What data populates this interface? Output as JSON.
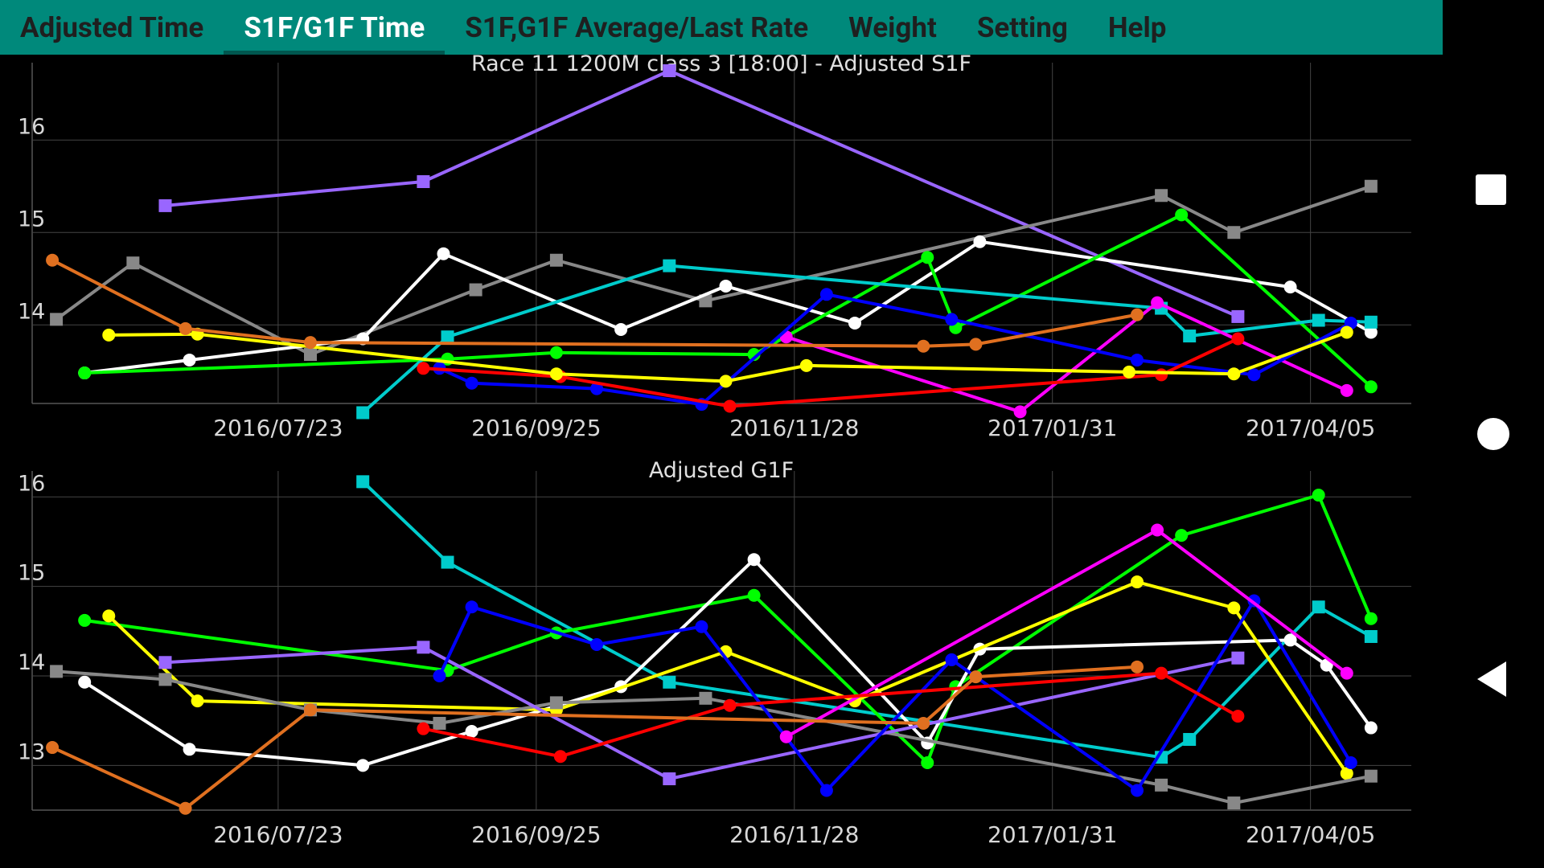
{
  "tabs": [
    {
      "label": "Adjusted Time",
      "active": false
    },
    {
      "label": "S1F/G1F Time",
      "active": true
    },
    {
      "label": "S1F,G1F Average/Last Rate",
      "active": false
    },
    {
      "label": "Weight",
      "active": false
    },
    {
      "label": "Setting",
      "active": false
    },
    {
      "label": "Help",
      "active": false
    }
  ],
  "navbar": {
    "recent": "square-icon",
    "home": "circle-icon",
    "back": "triangle-left-icon"
  },
  "chart_data": [
    {
      "type": "line",
      "title": "Race 11 1200M  class 3   [18:00] - Adjusted S1F",
      "x_ticks": [
        "2016/07/23",
        "2016/09/25",
        "2016/11/28",
        "2017/01/31",
        "2017/04/05"
      ],
      "xlim": [
        "2016/05/23",
        "2017/04/30"
      ],
      "ylim": [
        13.15,
        16.75
      ],
      "y_ticks": [
        14,
        15,
        16
      ],
      "grid": true,
      "series": [
        {
          "color": "#9966ff",
          "marker": "square",
          "points": [
            [
              "2016/06/25",
              15.29
            ],
            [
              "2016/08/28",
              15.55
            ],
            [
              "2016/10/28",
              16.75
            ],
            [
              "2017/03/18",
              14.09
            ]
          ]
        },
        {
          "color": "#888888",
          "marker": "square",
          "points": [
            [
              "2016/05/29",
              14.06
            ],
            [
              "2016/06/17",
              14.67
            ],
            [
              "2016/07/31",
              13.68
            ],
            [
              "2016/09/10",
              14.38
            ],
            [
              "2016/09/30",
              14.7
            ],
            [
              "2016/11/06",
              14.26
            ],
            [
              "2017/02/27",
              15.4
            ],
            [
              "2017/03/17",
              15.0
            ],
            [
              "2017/04/20",
              15.5
            ]
          ]
        },
        {
          "color": "#ffffff",
          "marker": "circle",
          "points": [
            [
              "2016/06/05",
              13.48
            ],
            [
              "2016/07/01",
              13.62
            ],
            [
              "2016/08/13",
              13.85
            ],
            [
              "2016/09/02",
              14.77
            ],
            [
              "2016/10/16",
              13.95
            ],
            [
              "2016/11/11",
              14.42
            ],
            [
              "2016/12/13",
              14.02
            ],
            [
              "2017/01/13",
              14.9
            ],
            [
              "2017/03/31",
              14.41
            ],
            [
              "2017/04/20",
              13.92
            ]
          ]
        },
        {
          "color": "#00ff00",
          "marker": "circle",
          "points": [
            [
              "2016/06/05",
              13.48
            ],
            [
              "2016/09/03",
              13.63
            ],
            [
              "2016/09/30",
              13.7
            ],
            [
              "2016/11/18",
              13.68
            ],
            [
              "2016/12/31",
              14.73
            ],
            [
              "2017/01/07",
              13.97
            ],
            [
              "2017/03/04",
              15.19
            ],
            [
              "2017/04/20",
              13.33
            ]
          ]
        },
        {
          "color": "#00cccc",
          "marker": "square",
          "points": [
            [
              "2016/08/13",
              13.05
            ],
            [
              "2016/09/03",
              13.87
            ],
            [
              "2016/10/28",
              14.64
            ],
            [
              "2017/02/27",
              14.18
            ],
            [
              "2017/03/06",
              13.88
            ],
            [
              "2017/04/07",
              14.05
            ],
            [
              "2017/04/20",
              14.03
            ]
          ]
        },
        {
          "color": "#ff00ff",
          "marker": "circle",
          "points": [
            [
              "2016/11/26",
              13.87
            ],
            [
              "2017/01/23",
              13.06
            ],
            [
              "2017/02/26",
              14.24
            ],
            [
              "2017/04/14",
              13.29
            ]
          ]
        },
        {
          "color": "#0000ff",
          "marker": "circle",
          "points": [
            [
              "2016/09/01",
              13.53
            ],
            [
              "2016/09/09",
              13.37
            ],
            [
              "2016/10/10",
              13.31
            ],
            [
              "2016/11/05",
              13.14
            ],
            [
              "2016/12/06",
              14.33
            ],
            [
              "2017/01/06",
              14.06
            ],
            [
              "2017/02/21",
              13.62
            ],
            [
              "2017/03/22",
              13.46
            ],
            [
              "2017/04/15",
              14.02
            ]
          ]
        },
        {
          "color": "#ff0000",
          "marker": "circle",
          "points": [
            [
              "2016/08/28",
              13.53
            ],
            [
              "2016/10/01",
              13.44
            ],
            [
              "2016/11/12",
              13.12
            ],
            [
              "2017/02/27",
              13.46
            ],
            [
              "2017/03/18",
              13.85
            ]
          ]
        },
        {
          "color": "#ffff00",
          "marker": "circle",
          "points": [
            [
              "2016/06/11",
              13.89
            ],
            [
              "2016/07/03",
              13.9
            ],
            [
              "2016/09/30",
              13.47
            ],
            [
              "2016/11/11",
              13.39
            ],
            [
              "2016/12/01",
              13.56
            ],
            [
              "2017/02/19",
              13.49
            ],
            [
              "2017/03/17",
              13.47
            ],
            [
              "2017/04/14",
              13.92
            ]
          ]
        },
        {
          "color": "#e07020",
          "marker": "circle",
          "points": [
            [
              "2016/05/28",
              14.7
            ],
            [
              "2016/06/30",
              13.96
            ],
            [
              "2016/07/31",
              13.81
            ],
            [
              "2016/12/30",
              13.77
            ],
            [
              "2017/01/12",
              13.79
            ],
            [
              "2017/02/21",
              14.11
            ]
          ]
        }
      ]
    },
    {
      "type": "line",
      "title": "Adjusted G1F",
      "x_ticks": [
        "2016/07/23",
        "2016/09/25",
        "2016/11/28",
        "2017/01/31",
        "2017/04/05"
      ],
      "xlim": [
        "2016/05/23",
        "2017/04/30"
      ],
      "ylim": [
        12.5,
        16.2
      ],
      "y_ticks": [
        13,
        14,
        15,
        16
      ],
      "grid": true,
      "series": [
        {
          "color": "#00cccc",
          "marker": "square",
          "points": [
            [
              "2016/08/13",
              16.17
            ],
            [
              "2016/09/03",
              15.27
            ],
            [
              "2016/10/28",
              13.93
            ],
            [
              "2017/02/27",
              13.09
            ],
            [
              "2017/03/06",
              13.29
            ],
            [
              "2017/04/07",
              14.77
            ],
            [
              "2017/04/20",
              14.44
            ]
          ]
        },
        {
          "color": "#00ff00",
          "marker": "circle",
          "points": [
            [
              "2016/06/05",
              14.62
            ],
            [
              "2016/09/03",
              14.06
            ],
            [
              "2016/09/30",
              14.48
            ],
            [
              "2016/11/18",
              14.9
            ],
            [
              "2016/12/31",
              13.03
            ],
            [
              "2017/01/07",
              13.88
            ],
            [
              "2017/03/04",
              15.57
            ],
            [
              "2017/04/07",
              16.02
            ],
            [
              "2017/04/20",
              14.64
            ]
          ]
        },
        {
          "color": "#ffffff",
          "marker": "circle",
          "points": [
            [
              "2016/06/05",
              13.93
            ],
            [
              "2016/07/01",
              13.18
            ],
            [
              "2016/08/13",
              13.0
            ],
            [
              "2016/09/09",
              13.38
            ],
            [
              "2016/10/16",
              13.88
            ],
            [
              "2016/11/18",
              15.3
            ],
            [
              "2016/12/31",
              13.25
            ],
            [
              "2017/01/13",
              14.3
            ],
            [
              "2017/03/31",
              14.4
            ],
            [
              "2017/04/09",
              14.12
            ],
            [
              "2017/04/20",
              13.42
            ]
          ]
        },
        {
          "color": "#ffff00",
          "marker": "circle",
          "points": [
            [
              "2016/06/11",
              14.67
            ],
            [
              "2016/07/03",
              13.72
            ],
            [
              "2016/09/30",
              13.62
            ],
            [
              "2016/11/11",
              14.27
            ],
            [
              "2016/12/13",
              13.72
            ],
            [
              "2017/02/21",
              15.05
            ],
            [
              "2017/03/17",
              14.76
            ],
            [
              "2017/04/14",
              12.91
            ]
          ]
        },
        {
          "color": "#888888",
          "marker": "square",
          "points": [
            [
              "2016/05/29",
              14.05
            ],
            [
              "2016/06/25",
              13.96
            ],
            [
              "2016/07/31",
              13.62
            ],
            [
              "2016/09/01",
              13.47
            ],
            [
              "2016/09/30",
              13.7
            ],
            [
              "2016/11/06",
              13.75
            ],
            [
              "2017/02/27",
              12.78
            ],
            [
              "2017/03/17",
              12.58
            ],
            [
              "2017/04/20",
              12.88
            ]
          ]
        },
        {
          "color": "#9966ff",
          "marker": "square",
          "points": [
            [
              "2016/06/25",
              14.15
            ],
            [
              "2016/08/28",
              14.32
            ],
            [
              "2016/10/28",
              12.85
            ],
            [
              "2017/03/18",
              14.2
            ]
          ]
        },
        {
          "color": "#0000ff",
          "marker": "circle",
          "points": [
            [
              "2016/09/01",
              14.0
            ],
            [
              "2016/09/09",
              14.77
            ],
            [
              "2016/10/10",
              14.35
            ],
            [
              "2016/11/05",
              14.55
            ],
            [
              "2016/12/06",
              12.72
            ],
            [
              "2017/01/06",
              14.18
            ],
            [
              "2017/02/21",
              12.72
            ],
            [
              "2017/03/22",
              14.84
            ],
            [
              "2017/04/15",
              13.03
            ]
          ]
        },
        {
          "color": "#ff00ff",
          "marker": "circle",
          "points": [
            [
              "2016/11/26",
              13.32
            ],
            [
              "2017/02/26",
              15.63
            ],
            [
              "2017/04/14",
              14.03
            ]
          ]
        },
        {
          "color": "#ff0000",
          "marker": "circle",
          "points": [
            [
              "2016/08/28",
              13.41
            ],
            [
              "2016/10/01",
              13.1
            ],
            [
              "2016/11/12",
              13.67
            ],
            [
              "2017/02/27",
              14.03
            ],
            [
              "2017/03/18",
              13.55
            ]
          ]
        },
        {
          "color": "#e07020",
          "marker": "circle",
          "points": [
            [
              "2016/05/28",
              13.2
            ],
            [
              "2016/06/30",
              12.52
            ],
            [
              "2016/07/31",
              13.62
            ],
            [
              "2016/12/30",
              13.47
            ],
            [
              "2017/01/12",
              13.99
            ],
            [
              "2017/02/21",
              14.1
            ]
          ]
        }
      ]
    }
  ]
}
